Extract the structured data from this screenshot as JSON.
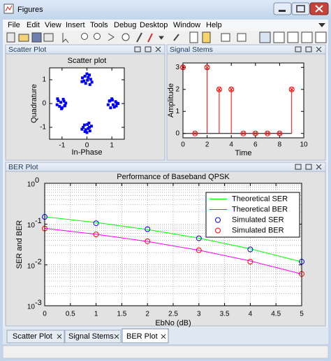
{
  "window": {
    "title": "Figures"
  },
  "menu": [
    "File",
    "Edit",
    "View",
    "Insert",
    "Tools",
    "Debug",
    "Desktop",
    "Window",
    "Help"
  ],
  "panels": {
    "scatter": "Scatter Plot",
    "stems": "Signal Stems",
    "ber": "BER Plot"
  },
  "tabs": [
    "Scatter Plot",
    "Signal Stems",
    "BER Plot"
  ],
  "chart_data": [
    {
      "type": "scatter",
      "title": "Scatter plot",
      "xlabel": "In-Phase",
      "ylabel": "Quadrature",
      "x": [
        0.05,
        -0.12,
        0.15,
        -0.05,
        0.1,
        -0.18,
        0.02,
        0.2,
        -0.08,
        0.12,
        -0.2,
        0.0,
        -1.05,
        -0.9,
        -1.15,
        -0.95,
        -1.2,
        -0.85,
        -1.0,
        -1.1,
        -0.92,
        -1.18,
        -1.02,
        -0.88,
        1.05,
        0.9,
        1.15,
        0.95,
        1.2,
        0.85,
        1.0,
        1.1,
        0.92,
        1.18,
        1.02,
        1.25,
        0.05,
        -0.1,
        0.12,
        -0.15,
        0.0,
        0.18,
        -0.05,
        0.08,
        -0.2,
        0.1,
        0.02,
        -0.08
      ],
      "y": [
        1.1,
        0.95,
        1.02,
        0.85,
        1.2,
        1.08,
        0.98,
        0.9,
        1.15,
        0.8,
        0.92,
        1.25,
        0.05,
        -0.1,
        0.12,
        0.18,
        -0.05,
        0.02,
        -0.18,
        -0.12,
        0.1,
        0.2,
        -0.22,
        -0.08,
        -0.05,
        0.1,
        0.08,
        -0.18,
        0.02,
        -0.05,
        0.2,
        -0.15,
        0.12,
        -0.1,
        0.15,
        0.0,
        -1.05,
        -0.9,
        -1.15,
        -1.0,
        -1.22,
        -0.95,
        -1.1,
        -0.82,
        -1.08,
        -1.0,
        -0.88,
        -1.18
      ],
      "color": "#0000ff",
      "xlim": [
        -1.5,
        1.5
      ],
      "ylim": [
        -1.5,
        1.5
      ],
      "xticks": [
        -1,
        0,
        1
      ],
      "yticks": [
        -1,
        0,
        1
      ]
    },
    {
      "type": "stem",
      "xlabel": "Time",
      "ylabel": "Amplitude",
      "x": [
        0,
        1,
        2,
        3,
        4,
        5,
        6,
        7,
        8,
        9
      ],
      "values": [
        3,
        0,
        3,
        2,
        2,
        0,
        0,
        0,
        0,
        2
      ],
      "color": "#ff0000",
      "xlim": [
        0,
        10
      ],
      "ylim": [
        -0.2,
        3.2
      ],
      "xticks": [
        0,
        2,
        4,
        6,
        8,
        10
      ],
      "yticks": [
        0,
        1,
        2,
        3
      ]
    },
    {
      "type": "line",
      "title": "Performance of Baseband QPSK",
      "xlabel": "EbNo (dB)",
      "ylabel": "SER and BER",
      "x": [
        0,
        1,
        2,
        3,
        4,
        5
      ],
      "series": [
        {
          "name": "Theoretical SER",
          "color": "#00ff00",
          "style": "line",
          "values": [
            0.151,
            0.1094,
            0.0736,
            0.0453,
            0.0248,
            0.0119
          ]
        },
        {
          "name": "Theoretical BER",
          "color": "#ff00ff",
          "style": "line",
          "values": [
            0.0786,
            0.0563,
            0.0375,
            0.0229,
            0.0125,
            0.006
          ]
        },
        {
          "name": "Simulated SER",
          "color": "#0000ff",
          "style": "marker",
          "values": [
            0.15,
            0.105,
            0.075,
            0.045,
            0.024,
            0.012
          ]
        },
        {
          "name": "Simulated BER",
          "color": "#ff0000",
          "style": "marker",
          "values": [
            0.078,
            0.056,
            0.038,
            0.023,
            0.012,
            0.006
          ]
        }
      ],
      "xlim": [
        0,
        5
      ],
      "ylim": [
        0.001,
        1
      ],
      "yscale": "log",
      "grid": true,
      "legend": "upper right",
      "xticks": [
        0,
        0.5,
        1,
        1.5,
        2,
        2.5,
        3,
        3.5,
        4,
        4.5,
        5
      ],
      "yticks": [
        {
          "value": 0.001,
          "label": "10",
          "exponent": "-3"
        },
        {
          "value": 0.01,
          "label": "10",
          "exponent": "-2"
        },
        {
          "value": 0.1,
          "label": "10",
          "exponent": "-1"
        },
        {
          "value": 1,
          "label": "10",
          "exponent": "0"
        }
      ]
    }
  ]
}
